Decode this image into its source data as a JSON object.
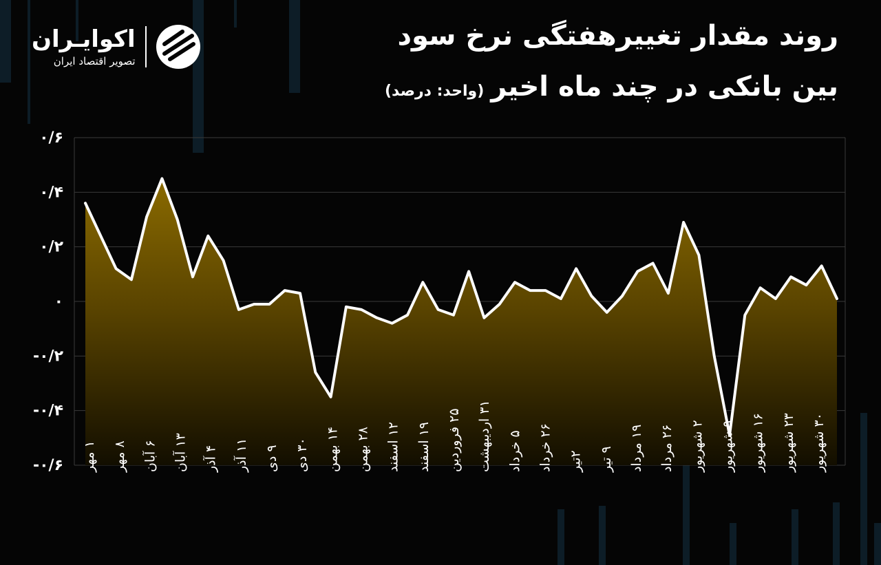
{
  "header": {
    "title_line1": "روند مقدار تغییرهفتگی نرخ سود",
    "title_line2": "بین بانکی در چند ماه اخیر",
    "unit": "(واحد: درصد)"
  },
  "logo": {
    "name": "اکوایـران",
    "subtitle": "تصویر اقتصاد ایران"
  },
  "colors": {
    "background": "#050505",
    "line": "#ffffff",
    "fill_top": "#8a6a00",
    "fill_bottom": "#1a1400",
    "grid": "#3a3a3a"
  },
  "chart_data": {
    "type": "area",
    "title": "روند مقدار تغییرهفتگی نرخ سود بین بانکی در چند ماه اخیر",
    "xlabel": "",
    "ylabel": "",
    "ylim": [
      -0.6,
      0.6
    ],
    "grid": true,
    "yticks": [
      {
        "value": 0.6,
        "label": "۰/۶"
      },
      {
        "value": 0.4,
        "label": "۰/۴"
      },
      {
        "value": 0.2,
        "label": "۰/۲"
      },
      {
        "value": 0,
        "label": "۰"
      },
      {
        "value": -0.2,
        "label": "-۰/۲"
      },
      {
        "value": -0.4,
        "label": "-۰/۴"
      },
      {
        "value": -0.6,
        "label": "-۰/۶"
      }
    ],
    "xtick_labels": [
      "۱ مهر",
      "۸ مهر",
      "۶ آبان",
      "۱۳ آبان",
      "۴ آذر",
      "۱۱ آذر",
      "۹ دی",
      "۳۰ دی",
      "۱۴ بهمن",
      "۲۸ بهمن",
      "۱۲ اسفند",
      "۱۹ اسفند",
      "۲۵ فروردین",
      "۳۱ اردیبهشت",
      "۵ خرداد",
      "۲۶ خرداد",
      "۲تیر",
      "۹ تیر",
      "۱۹ مرداد",
      "۲۶ مرداد",
      "۲ شهریور",
      "۹ شهریور",
      "۱۶ شهریور",
      "۲۳ شهریور",
      "۳۰ شهریور"
    ],
    "values": [
      0.36,
      0.24,
      0.12,
      0.08,
      0.31,
      0.45,
      0.3,
      0.09,
      0.24,
      0.15,
      -0.03,
      -0.01,
      -0.01,
      0.04,
      0.03,
      -0.26,
      -0.35,
      -0.02,
      -0.03,
      -0.06,
      -0.08,
      -0.05,
      0.07,
      -0.03,
      -0.05,
      0.11,
      -0.06,
      -0.01,
      0.07,
      0.04,
      0.04,
      0.01,
      0.12,
      0.02,
      -0.04,
      0.02,
      0.11,
      0.14,
      0.03,
      0.29,
      0.17,
      -0.2,
      -0.49,
      -0.05,
      0.05,
      0.01,
      0.09,
      0.06,
      0.13,
      0.01
    ]
  }
}
